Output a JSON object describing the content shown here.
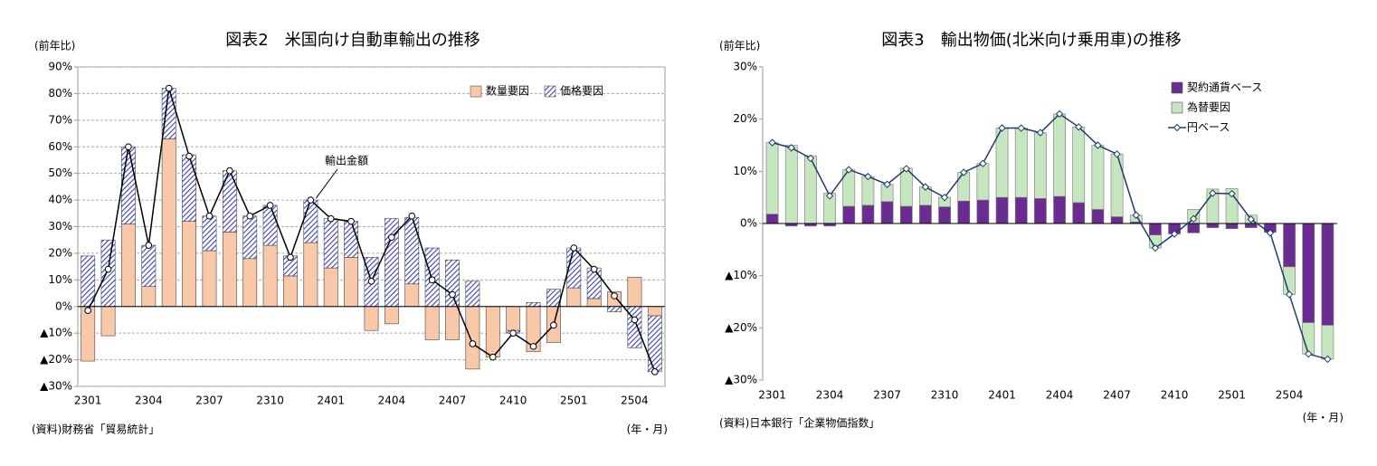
{
  "chart_data": [
    {
      "type": "bar",
      "title": "図表2　米国向け自動車輸出の推移",
      "y_label": "(前年比)",
      "x_label": "(年・月)",
      "source": "(資料)財務省「貿易統計」",
      "categories": [
        "2301",
        null,
        null,
        "2304",
        null,
        null,
        "2307",
        null,
        null,
        "2310",
        null,
        null,
        "2401",
        null,
        null,
        "2404",
        null,
        null,
        "2407",
        null,
        null,
        "2410",
        null,
        null,
        "2501",
        null,
        null,
        "2504",
        null
      ],
      "series": [
        {
          "name": "数量要因",
          "type": "bar",
          "color": "#f8c8a8",
          "hatch": false,
          "values": [
            -20.5,
            -11,
            31,
            7.5,
            63,
            32,
            21,
            28,
            18,
            23,
            11.5,
            24,
            14.5,
            18.5,
            -9,
            -6.5,
            8.5,
            -12.5,
            -12.5,
            -23.5,
            -19,
            -9,
            -17,
            -13.5,
            7,
            3,
            5.5,
            11,
            -3.5
          ]
        },
        {
          "name": "価格要因",
          "type": "bar",
          "color": "#3a3fbf",
          "hatch": true,
          "values": [
            19,
            25,
            29,
            15.5,
            19,
            25,
            13,
            23,
            16,
            15,
            7.5,
            16,
            18.5,
            13.5,
            18.5,
            33,
            25,
            22,
            17.5,
            9.5,
            0,
            -1,
            1.5,
            6.5,
            15,
            11.5,
            -2,
            -15.5,
            -21
          ]
        },
        {
          "name": "輸出金額",
          "type": "line",
          "color": "#000000",
          "marker": "circle",
          "in_legend": false,
          "values": [
            -1.5,
            14,
            60,
            23,
            82,
            56.5,
            34,
            51,
            34,
            38,
            18.5,
            40,
            33,
            32,
            9.5,
            26,
            34,
            10,
            4.5,
            -14,
            -19,
            -10,
            -15,
            -7,
            22,
            14,
            4,
            -5,
            -24.5
          ]
        }
      ],
      "ylim": [
        -30,
        90
      ],
      "yticks": [
        {
          "value": -30,
          "label": "▲30%"
        },
        {
          "value": -20,
          "label": "▲20%"
        },
        {
          "value": -10,
          "label": "▲10%"
        },
        {
          "value": 0,
          "label": "0%"
        },
        {
          "value": 10,
          "label": "10%"
        },
        {
          "value": 20,
          "label": "20%"
        },
        {
          "value": 30,
          "label": "30%"
        },
        {
          "value": 40,
          "label": "40%"
        },
        {
          "value": 50,
          "label": "50%"
        },
        {
          "value": 60,
          "label": "60%"
        },
        {
          "value": 70,
          "label": "70%"
        },
        {
          "value": 80,
          "label": "80%"
        },
        {
          "value": 90,
          "label": "90%"
        }
      ],
      "grid": true,
      "legend": "top-right"
    },
    {
      "type": "bar",
      "title": "図表3　輸出物価(北米向け乗用車)の推移",
      "y_label": "(前年比)",
      "x_label": "(年・月)",
      "source": "(資料)日本銀行「企業物価指数」",
      "categories": [
        "2301",
        null,
        null,
        "2304",
        null,
        null,
        "2307",
        null,
        null,
        "2310",
        null,
        null,
        "2401",
        null,
        null,
        "2404",
        null,
        null,
        "2407",
        null,
        null,
        "2410",
        null,
        null,
        "2501",
        null,
        null,
        "2504",
        null,
        null
      ],
      "series": [
        {
          "name": "契約通貨ベース",
          "type": "bar",
          "color": "#6a2c91",
          "hatch": false,
          "values": [
            1.8,
            -0.5,
            -0.5,
            -0.5,
            3.3,
            3.5,
            4.2,
            3.3,
            3.5,
            3.2,
            4.3,
            4.5,
            5,
            5,
            4.8,
            5.2,
            4,
            2.7,
            1.3,
            0.3,
            -2.2,
            -2,
            -1.8,
            -0.8,
            -1,
            -0.8,
            -1.7,
            -8.3,
            -19,
            -19.5
          ]
        },
        {
          "name": "為替要因",
          "type": "bar",
          "color": "#c6e6c0",
          "hatch": false,
          "values": [
            13.7,
            15,
            13,
            5.8,
            7,
            5.5,
            3.3,
            7.3,
            3.5,
            1.8,
            5.5,
            7,
            13.3,
            13.3,
            12.6,
            15.8,
            14.5,
            12.3,
            12,
            1.3,
            -2.5,
            0,
            2.7,
            6.6,
            6.7,
            1.6,
            0,
            -5.3,
            -6,
            -6.5
          ]
        },
        {
          "name": "円ベース",
          "type": "line",
          "color": "#1f3a6e",
          "marker": "diamond",
          "in_legend": true,
          "values": [
            15.5,
            14.5,
            12.5,
            5.3,
            10.3,
            9,
            7.5,
            10.5,
            7,
            5,
            9.8,
            11.5,
            18.3,
            18.3,
            17.4,
            21,
            18.5,
            15,
            13.3,
            1.6,
            -4.7,
            -2,
            0.9,
            5.8,
            5.7,
            0.8,
            -1.8,
            -13.6,
            -25,
            -26
          ]
        }
      ],
      "ylim": [
        -30,
        30
      ],
      "yticks": [
        {
          "value": -30,
          "label": "▲30%"
        },
        {
          "value": -20,
          "label": "▲20%"
        },
        {
          "value": -10,
          "label": "▲10%"
        },
        {
          "value": 0,
          "label": "0%"
        },
        {
          "value": 10,
          "label": "10%"
        },
        {
          "value": 20,
          "label": "20%"
        },
        {
          "value": 30,
          "label": "30%"
        }
      ],
      "grid": false,
      "legend": "top-right"
    }
  ]
}
